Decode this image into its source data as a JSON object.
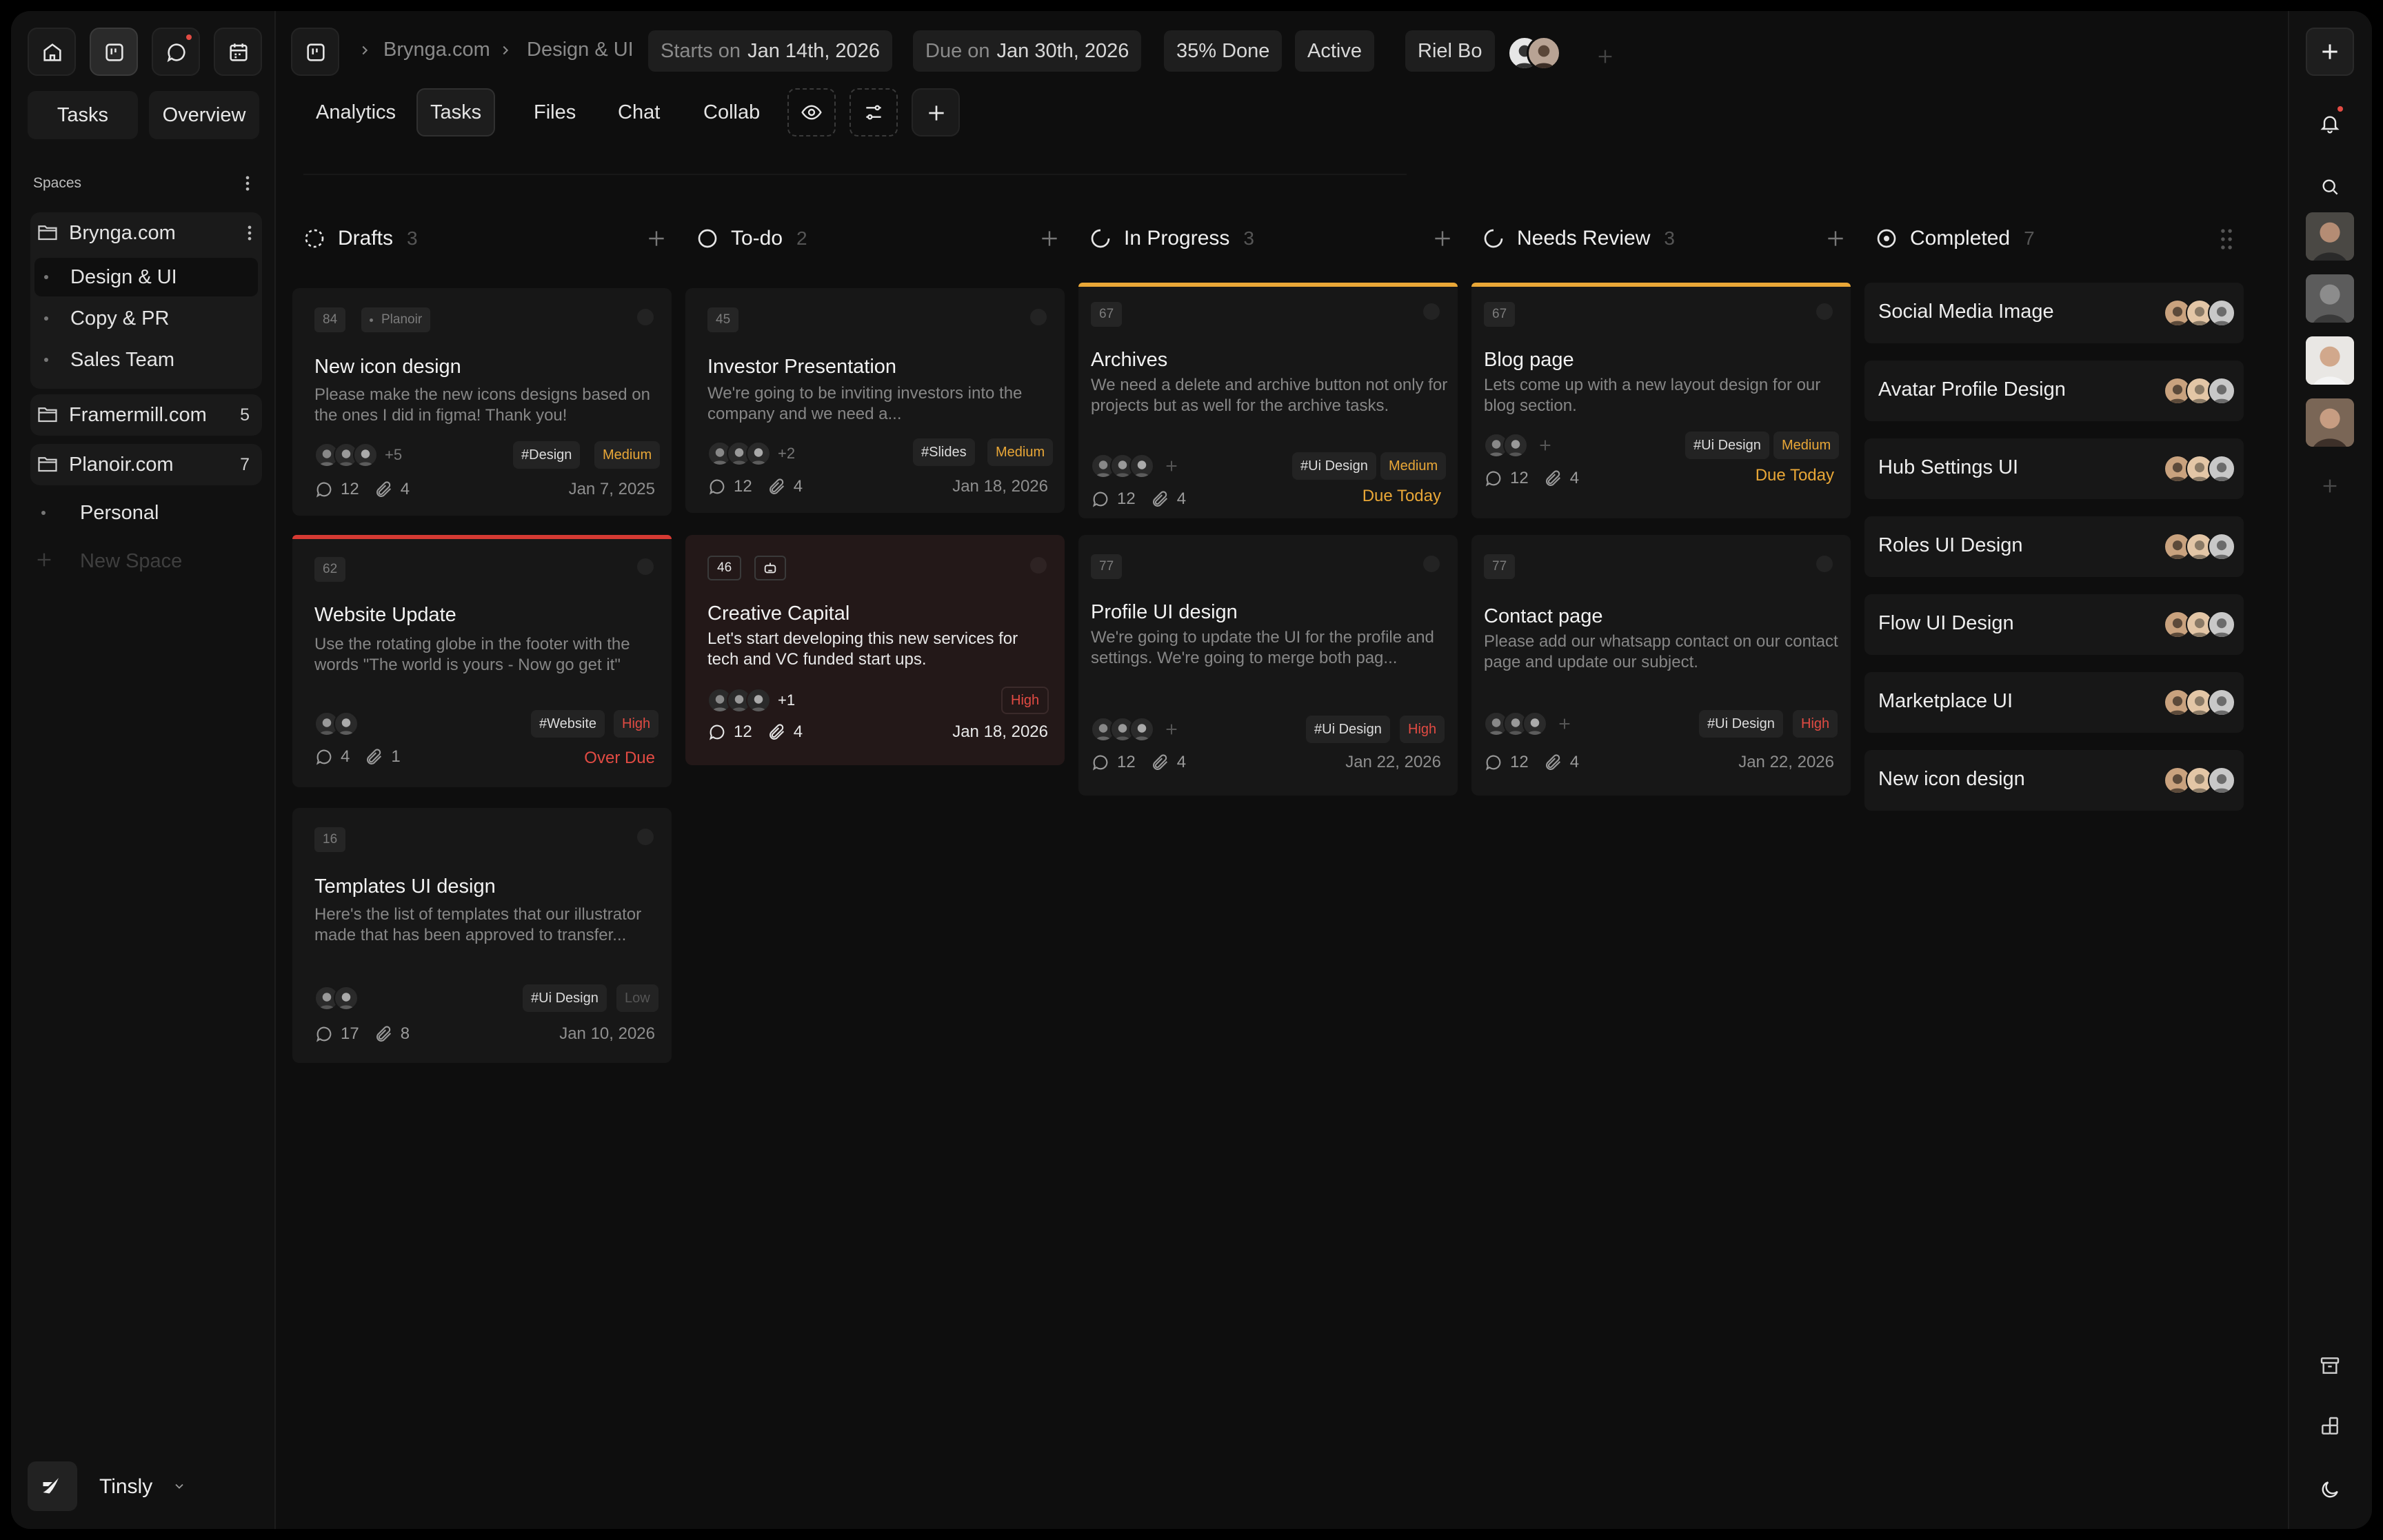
{
  "colors": {
    "bg": "#0e0e0e",
    "accent_medium": "#e9a737",
    "accent_high": "#e24b43",
    "in_progress_bar": "#e9a737"
  },
  "sidebar": {
    "top_icons": [
      "home-icon",
      "board-icon",
      "chat-icon",
      "calendar-icon"
    ],
    "tabs": [
      "Tasks",
      "Overview"
    ],
    "spaces_heading": "Spaces",
    "spaces": [
      {
        "label": "Brynga.com",
        "sub": [
          "Design & UI",
          "Copy & PR",
          "Sales Team"
        ]
      },
      {
        "label": "Framermill.com",
        "count": "5"
      },
      {
        "label": "Planoir.com",
        "count": "7"
      },
      {
        "label": "Personal"
      },
      {
        "label": "New Space"
      }
    ],
    "workspace": "Tinsly"
  },
  "header": {
    "breadcrumb": [
      "Brynga.com",
      "Design & UI"
    ],
    "starts_label": "Starts on",
    "starts_value": "Jan 14th, 2026",
    "due_label": "Due on",
    "due_value": "Jan 30th, 2026",
    "progress": "35% Done",
    "status": "Active",
    "owner": "Riel Bo"
  },
  "nav": {
    "tabs": [
      "Analytics",
      "Tasks",
      "Files",
      "Chat",
      "Collab"
    ],
    "active": "Tasks"
  },
  "columns": [
    {
      "title": "Drafts",
      "count": "3",
      "cards": [
        {
          "id": "84",
          "project": "Planoir",
          "title": "New icon design",
          "desc": "Please make the new icons designs  based on the ones I did in figma! Thank you!",
          "more": "+5",
          "tag": "#Design",
          "priority": "Medium",
          "comments": "12",
          "files": "4",
          "date": "Jan 7, 2025"
        },
        {
          "id": "62",
          "title": "Website Update",
          "desc": "Use the rotating globe in the footer with the words \"The world is yours - Now go get it\"",
          "tag": "#Website",
          "priority": "High",
          "comments": "4",
          "files": "1",
          "date": "Over Due"
        },
        {
          "id": "16",
          "title": "Templates UI design",
          "desc": "Here's the list of templates that our illustrator made that has been approved to transfer...",
          "tag": "#Ui Design",
          "priority": "Low",
          "comments": "17",
          "files": "8",
          "date": "Jan 10, 2026"
        }
      ]
    },
    {
      "title": "To-do",
      "count": "2",
      "cards": [
        {
          "id": "45",
          "title": "Investor Presentation",
          "desc": "We're going to be inviting investors into the company and we need a...",
          "more": "+2",
          "tag": "#Slides",
          "priority": "Medium",
          "comments": "12",
          "files": "4",
          "date": "Jan 18, 2026"
        },
        {
          "id": "46",
          "title": "Creative Capital",
          "desc": "Let's start developing this new services for tech and VC funded start ups.",
          "more": "+1",
          "priority": "High",
          "comments": "12",
          "files": "4",
          "date": "Jan 18, 2026"
        }
      ]
    },
    {
      "title": "In Progress",
      "count": "3",
      "cards": [
        {
          "id": "67",
          "title": "Archives",
          "desc": "We need a delete and archive button not only for projects but as well for the archive tasks.",
          "tag": "#Ui Design",
          "priority": "Medium",
          "comments": "12",
          "files": "4",
          "date": "Due Today"
        },
        {
          "id": "77",
          "title": "Profile UI design",
          "desc": "We're going to update the UI for the profile and settings. We're going to merge both pag...",
          "tag": "#Ui Design",
          "priority": "High",
          "comments": "12",
          "files": "4",
          "date": "Jan 22, 2026"
        }
      ]
    },
    {
      "title": "Needs Review",
      "count": "3",
      "cards": [
        {
          "id": "67",
          "title": "Blog page",
          "desc": "Lets come up with a new layout design for our blog section.",
          "tag": "#Ui Design",
          "priority": "Medium",
          "comments": "12",
          "files": "4",
          "date": "Due Today"
        },
        {
          "id": "77",
          "title": "Contact page",
          "desc": "Please add our whatsapp contact on our contact page and update our subject.",
          "tag": "#Ui Design",
          "priority": "High",
          "comments": "12",
          "files": "4",
          "date": "Jan 22, 2026"
        }
      ]
    },
    {
      "title": "Completed",
      "count": "7",
      "items": [
        "Social Media Image",
        "Avatar Profile Design",
        "Hub Settings UI",
        "Roles UI Design",
        "Flow UI Design",
        "Marketplace UI",
        "New icon design"
      ]
    }
  ]
}
